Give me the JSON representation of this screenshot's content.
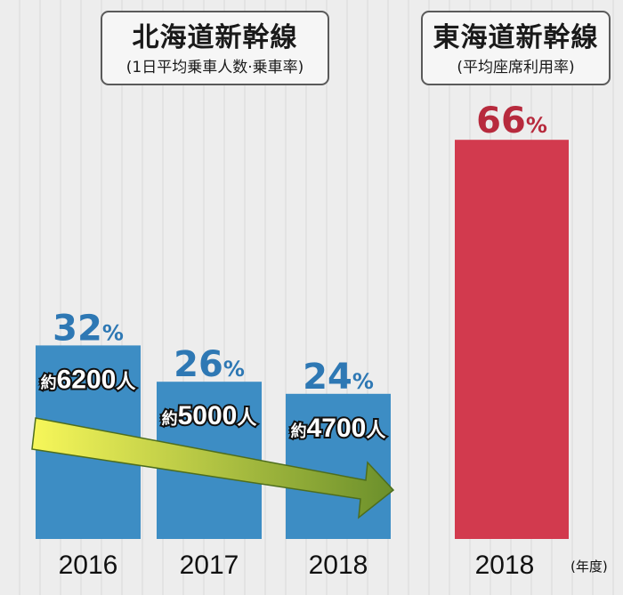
{
  "titles": {
    "hokkaido": {
      "main": "北海道新幹線",
      "sub": "(1日平均乗車人数·乗車率)"
    },
    "tokaido": {
      "main": "東海道新幹線",
      "sub": "(平均座席利用率)"
    }
  },
  "year_unit": "(年度)",
  "colors": {
    "blue": "#3d8dc4",
    "red": "#d23a4e",
    "pct_blue": "#2e78b4",
    "pct_red": "#b72a3d",
    "arrow_start": "#f7f75a",
    "arrow_end": "#6b8f2b"
  },
  "chart_data": [
    {
      "type": "bar",
      "title": "北海道新幹線",
      "subtitle": "(1日平均乗車人数·乗車率)",
      "categories": [
        "2016",
        "2017",
        "2018"
      ],
      "values": [
        32,
        26,
        24
      ],
      "value_labels": [
        "32%",
        "26%",
        "24%"
      ],
      "riders": [
        "約6200人",
        "約5000人",
        "約4700人"
      ],
      "ylim": [
        0,
        100
      ],
      "annotation": "decreasing-trend-arrow"
    },
    {
      "type": "bar",
      "title": "東海道新幹線",
      "subtitle": "(平均座席利用率)",
      "categories": [
        "2018"
      ],
      "values": [
        66
      ],
      "value_labels": [
        "66%"
      ],
      "ylim": [
        0,
        100
      ]
    }
  ]
}
